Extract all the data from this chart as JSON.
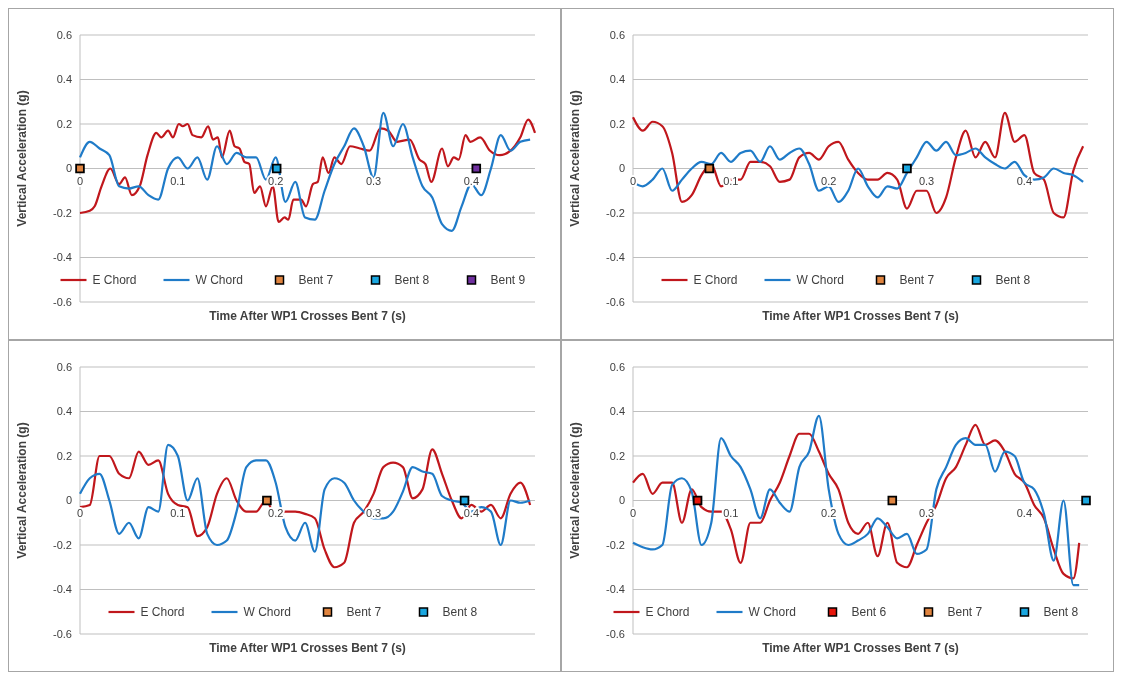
{
  "chart_data": [
    {
      "type": "line",
      "xlabel": "Time After WP1 Crosses Bent 7 (s)",
      "ylabel": "Vertical Acceleration (g)",
      "xlim": [
        0,
        0.465
      ],
      "xticks": [
        0,
        0.1,
        0.2,
        0.3,
        0.4
      ],
      "ylim": [
        -0.6,
        0.6
      ],
      "yticks": [
        -0.6,
        -0.4,
        -0.2,
        0,
        0.2,
        0.4,
        0.6
      ],
      "grid": "y",
      "legend": "bottom",
      "marker": "none",
      "x": [
        0,
        0.01,
        0.02,
        0.03,
        0.04,
        0.05,
        0.06,
        0.07,
        0.08,
        0.09,
        0.1,
        0.11,
        0.12,
        0.13,
        0.14,
        0.15,
        0.16,
        0.17,
        0.18,
        0.19,
        0.2,
        0.21,
        0.22,
        0.23,
        0.24,
        0.25,
        0.26,
        0.27,
        0.28,
        0.29,
        0.3,
        0.31,
        0.32,
        0.33,
        0.34,
        0.35,
        0.36,
        0.37,
        0.38,
        0.39,
        0.4,
        0.41,
        0.42,
        0.43,
        0.44,
        0.45,
        0.46
      ],
      "series": [
        {
          "name": "E Chord",
          "color": "#c0171c",
          "x": [
            0,
            0.01,
            0.015,
            0.022,
            0.031,
            0.04,
            0.046,
            0.053,
            0.061,
            0.069,
            0.078,
            0.083,
            0.09,
            0.095,
            0.101,
            0.105,
            0.11,
            0.115,
            0.124,
            0.131,
            0.136,
            0.141,
            0.145,
            0.153,
            0.158,
            0.163,
            0.168,
            0.173,
            0.178,
            0.184,
            0.19,
            0.197,
            0.203,
            0.209,
            0.213,
            0.218,
            0.226,
            0.231,
            0.238,
            0.243,
            0.248,
            0.254,
            0.26,
            0.267,
            0.276,
            0.286,
            0.296,
            0.307,
            0.315,
            0.324,
            0.337,
            0.347,
            0.353,
            0.359,
            0.37,
            0.376,
            0.382,
            0.387,
            0.394,
            0.399,
            0.409,
            0.419,
            0.429,
            0.44,
            0.45,
            0.458,
            0.465
          ],
          "values": [
            -0.2,
            -0.19,
            -0.17,
            -0.08,
            0,
            -0.07,
            -0.04,
            -0.12,
            -0.08,
            0.06,
            0.16,
            0.14,
            0.17,
            0.14,
            0.2,
            0.19,
            0.2,
            0.15,
            0.14,
            0.19,
            0.13,
            0.14,
            0.05,
            0.17,
            0.1,
            0.09,
            0.03,
            0.02,
            -0.11,
            -0.08,
            -0.17,
            -0.08,
            -0.24,
            -0.22,
            -0.23,
            -0.14,
            -0.14,
            -0.17,
            -0.07,
            -0.06,
            0.05,
            -0.02,
            0.05,
            0.02,
            0.1,
            0.09,
            0.08,
            0.18,
            0.17,
            0.12,
            0.13,
            0.04,
            0.02,
            -0.06,
            0.09,
            0.01,
            0.05,
            0.04,
            0.15,
            0.12,
            0.14,
            0.08,
            0.06,
            0.08,
            0.14,
            0.22,
            0.16
          ]
        },
        {
          "name": "W Chord",
          "color": "#1f7bc8",
          "values": [
            0.05,
            0.12,
            0.09,
            0.06,
            -0.08,
            -0.09,
            -0.08,
            -0.12,
            -0.14,
            0,
            0.05,
            0,
            0.05,
            -0.05,
            0.1,
            0.02,
            0.07,
            0.05,
            0.05,
            -0.05,
            0.05,
            -0.15,
            -0.06,
            -0.22,
            -0.23,
            -0.1,
            0.02,
            0.1,
            0.18,
            0.1,
            -0.04,
            0.25,
            0.1,
            0.2,
            0.05,
            -0.08,
            -0.13,
            -0.25,
            -0.28,
            -0.17,
            -0.07,
            -0.12,
            0,
            0.15,
            0.08,
            0.12,
            0.13
          ]
        },
        {
          "name": "Bent 7",
          "type": "scatter",
          "marker": "square",
          "color": "#e0843f",
          "x": [
            0
          ],
          "values": [
            0
          ]
        },
        {
          "name": "Bent 8",
          "type": "scatter",
          "marker": "square",
          "color": "#1aa7e0",
          "x": [
            0.201
          ],
          "values": [
            0
          ]
        },
        {
          "name": "Bent 9",
          "type": "scatter",
          "marker": "square",
          "color": "#7030a0",
          "x": [
            0.405
          ],
          "values": [
            0
          ]
        }
      ]
    },
    {
      "type": "line",
      "xlabel": "Time After WP1 Crosses Bent 7 (s)",
      "ylabel": "Vertical Acceleration (g)",
      "xlim": [
        0,
        0.465
      ],
      "xticks": [
        0,
        0.1,
        0.2,
        0.3,
        0.4
      ],
      "ylim": [
        -0.6,
        0.6
      ],
      "yticks": [
        -0.6,
        -0.4,
        -0.2,
        0,
        0.2,
        0.4,
        0.6
      ],
      "grid": "y",
      "legend": "bottom",
      "marker": "none",
      "x": [
        0,
        0.01,
        0.02,
        0.03,
        0.04,
        0.05,
        0.06,
        0.07,
        0.08,
        0.09,
        0.1,
        0.11,
        0.12,
        0.13,
        0.14,
        0.15,
        0.16,
        0.17,
        0.18,
        0.19,
        0.2,
        0.21,
        0.22,
        0.23,
        0.24,
        0.25,
        0.26,
        0.27,
        0.28,
        0.29,
        0.3,
        0.31,
        0.32,
        0.33,
        0.34,
        0.35,
        0.36,
        0.37,
        0.38,
        0.39,
        0.4,
        0.41,
        0.42,
        0.43,
        0.44,
        0.45,
        0.46
      ],
      "series": [
        {
          "name": "E Chord",
          "color": "#c0171c",
          "values": [
            0.23,
            0.17,
            0.21,
            0.19,
            0.07,
            -0.15,
            -0.12,
            -0.03,
            0.02,
            -0.08,
            -0.05,
            -0.05,
            0.03,
            0.03,
            0.01,
            -0.06,
            -0.05,
            0.05,
            0.07,
            0.04,
            0.1,
            0.12,
            0.04,
            -0.02,
            -0.05,
            -0.05,
            -0.02,
            -0.05,
            -0.18,
            -0.1,
            -0.1,
            -0.2,
            -0.13,
            0.05,
            0.17,
            0.05,
            0.12,
            0.05,
            0.25,
            0.12,
            0.15,
            -0.02,
            -0.05,
            -0.2,
            -0.22,
            -0.01,
            0.1
          ]
        },
        {
          "name": "W Chord",
          "color": "#1f7bc8",
          "values": [
            -0.06,
            -0.08,
            -0.05,
            0,
            -0.1,
            -0.05,
            0,
            0.03,
            0.02,
            0.07,
            0.03,
            0.07,
            0.08,
            0.03,
            0.1,
            0.04,
            0.07,
            0.09,
            0.02,
            -0.1,
            -0.08,
            -0.15,
            -0.1,
            0,
            -0.08,
            -0.13,
            -0.08,
            -0.09,
            -0.02,
            0.05,
            0.12,
            0.08,
            0.12,
            0.06,
            0.07,
            0.09,
            0.05,
            0.02,
            0,
            0.03,
            -0.03,
            -0.05,
            -0.04,
            0,
            -0.02,
            -0.03,
            -0.06
          ]
        },
        {
          "name": "Bent 7",
          "type": "scatter",
          "marker": "square",
          "color": "#e0843f",
          "x": [
            0.078
          ],
          "values": [
            0
          ]
        },
        {
          "name": "Bent 8",
          "type": "scatter",
          "marker": "square",
          "color": "#1aa7e0",
          "x": [
            0.28
          ],
          "values": [
            0
          ]
        }
      ]
    },
    {
      "type": "line",
      "xlabel": "Time After WP1 Crosses Bent 7 (s)",
      "ylabel": "Vertical Acceleration (g)",
      "xlim": [
        0,
        0.465
      ],
      "xticks": [
        0,
        0.1,
        0.2,
        0.3,
        0.4
      ],
      "ylim": [
        -0.6,
        0.6
      ],
      "yticks": [
        -0.6,
        -0.4,
        -0.2,
        0,
        0.2,
        0.4,
        0.6
      ],
      "grid": "y",
      "legend": "bottom",
      "marker": "none",
      "x": [
        0,
        0.01,
        0.02,
        0.03,
        0.04,
        0.05,
        0.06,
        0.07,
        0.08,
        0.09,
        0.1,
        0.11,
        0.12,
        0.13,
        0.14,
        0.15,
        0.16,
        0.17,
        0.18,
        0.19,
        0.2,
        0.21,
        0.22,
        0.23,
        0.24,
        0.25,
        0.26,
        0.27,
        0.28,
        0.29,
        0.3,
        0.31,
        0.32,
        0.33,
        0.34,
        0.35,
        0.36,
        0.37,
        0.38,
        0.39,
        0.4,
        0.41,
        0.42,
        0.43,
        0.44,
        0.45,
        0.46
      ],
      "series": [
        {
          "name": "E Chord",
          "color": "#c0171c",
          "values": [
            -0.03,
            -0.02,
            0.2,
            0.2,
            0.12,
            0.1,
            0.22,
            0.16,
            0.18,
            0.03,
            -0.02,
            -0.03,
            -0.16,
            -0.12,
            0.03,
            0.1,
            0,
            -0.05,
            -0.05,
            0,
            -0.07,
            -0.05,
            -0.05,
            -0.06,
            -0.08,
            -0.22,
            -0.3,
            -0.28,
            -0.1,
            -0.05,
            0.03,
            0.15,
            0.17,
            0.15,
            0.01,
            0.05,
            0.23,
            0.12,
            0,
            -0.08,
            -0.02,
            -0.05,
            -0.02,
            -0.08,
            0.03,
            0.08,
            -0.02
          ]
        },
        {
          "name": "W Chord",
          "color": "#1f7bc8",
          "values": [
            0.03,
            0.1,
            0.12,
            0,
            -0.15,
            -0.1,
            -0.17,
            -0.03,
            -0.05,
            0.25,
            0.2,
            0,
            0.1,
            -0.15,
            -0.2,
            -0.18,
            -0.05,
            0.15,
            0.18,
            0.18,
            0.08,
            -0.12,
            -0.18,
            -0.1,
            -0.23,
            0.05,
            0.1,
            0.08,
            0,
            -0.05,
            -0.08,
            -0.08,
            -0.05,
            0.04,
            0.15,
            0.13,
            0.12,
            0.02,
            0,
            -0.01,
            -0.05,
            -0.03,
            -0.05,
            -0.2,
            0,
            -0.01,
            0
          ]
        },
        {
          "name": "Bent 7",
          "type": "scatter",
          "marker": "square",
          "color": "#e0843f",
          "x": [
            0.191
          ],
          "values": [
            0
          ]
        },
        {
          "name": "Bent 8",
          "type": "scatter",
          "marker": "square",
          "color": "#1aa7e0",
          "x": [
            0.393
          ],
          "values": [
            0
          ]
        }
      ]
    },
    {
      "type": "line",
      "xlabel": "Time After WP1 Crosses Bent 7 (s)",
      "ylabel": "Vertical Acceleration (g)",
      "xlim": [
        0,
        0.465
      ],
      "xticks": [
        0,
        0.1,
        0.2,
        0.3,
        0.4
      ],
      "ylim": [
        -0.6,
        0.6
      ],
      "yticks": [
        -0.6,
        -0.4,
        -0.2,
        0,
        0.2,
        0.4,
        0.6
      ],
      "grid": "y",
      "legend": "bottom",
      "marker": "none",
      "x": [
        0,
        0.01,
        0.02,
        0.03,
        0.04,
        0.05,
        0.06,
        0.07,
        0.08,
        0.09,
        0.1,
        0.11,
        0.12,
        0.13,
        0.14,
        0.15,
        0.16,
        0.17,
        0.18,
        0.19,
        0.2,
        0.21,
        0.22,
        0.23,
        0.24,
        0.25,
        0.26,
        0.27,
        0.28,
        0.29,
        0.3,
        0.31,
        0.32,
        0.33,
        0.34,
        0.35,
        0.36,
        0.37,
        0.38,
        0.39,
        0.4,
        0.41,
        0.42,
        0.43,
        0.44,
        0.45,
        0.456
      ],
      "series": [
        {
          "name": "E Chord",
          "color": "#c0171c",
          "values": [
            0.08,
            0.12,
            0.03,
            0.08,
            0.08,
            -0.1,
            0.05,
            -0.03,
            -0.05,
            -0.05,
            -0.13,
            -0.28,
            -0.1,
            -0.1,
            0,
            0.08,
            0.2,
            0.3,
            0.3,
            0.22,
            0.12,
            0.05,
            -0.1,
            -0.15,
            -0.1,
            -0.25,
            -0.1,
            -0.28,
            -0.3,
            -0.2,
            -0.1,
            -0.02,
            0.1,
            0.15,
            0.25,
            0.34,
            0.25,
            0.27,
            0.22,
            0.12,
            0.08,
            -0.02,
            -0.08,
            -0.22,
            -0.33,
            -0.35,
            -0.19
          ]
        },
        {
          "name": "W Chord",
          "color": "#1f7bc8",
          "values": [
            -0.19,
            -0.21,
            -0.22,
            -0.2,
            0.07,
            0.1,
            0.04,
            -0.2,
            -0.1,
            0.28,
            0.2,
            0.15,
            0.05,
            -0.08,
            0.05,
            -0.01,
            -0.05,
            0.15,
            0.22,
            0.38,
            0.05,
            -0.15,
            -0.2,
            -0.18,
            -0.15,
            -0.08,
            -0.12,
            -0.17,
            -0.15,
            -0.24,
            -0.22,
            0.05,
            0.15,
            0.25,
            0.28,
            0.25,
            0.25,
            0.13,
            0.22,
            0.2,
            0.08,
            0.05,
            -0.06,
            -0.27,
            0,
            -0.38,
            -0.38
          ]
        },
        {
          "name": "Bent 6",
          "type": "scatter",
          "marker": "square",
          "color": "#e8170c",
          "x": [
            0.066
          ],
          "values": [
            0
          ]
        },
        {
          "name": "Bent 7",
          "type": "scatter",
          "marker": "square",
          "color": "#e0843f",
          "x": [
            0.265
          ],
          "values": [
            0
          ]
        },
        {
          "name": "Bent 8",
          "type": "scatter",
          "marker": "square",
          "color": "#1aa7e0",
          "x": [
            0.463
          ],
          "values": [
            0
          ]
        }
      ]
    }
  ]
}
